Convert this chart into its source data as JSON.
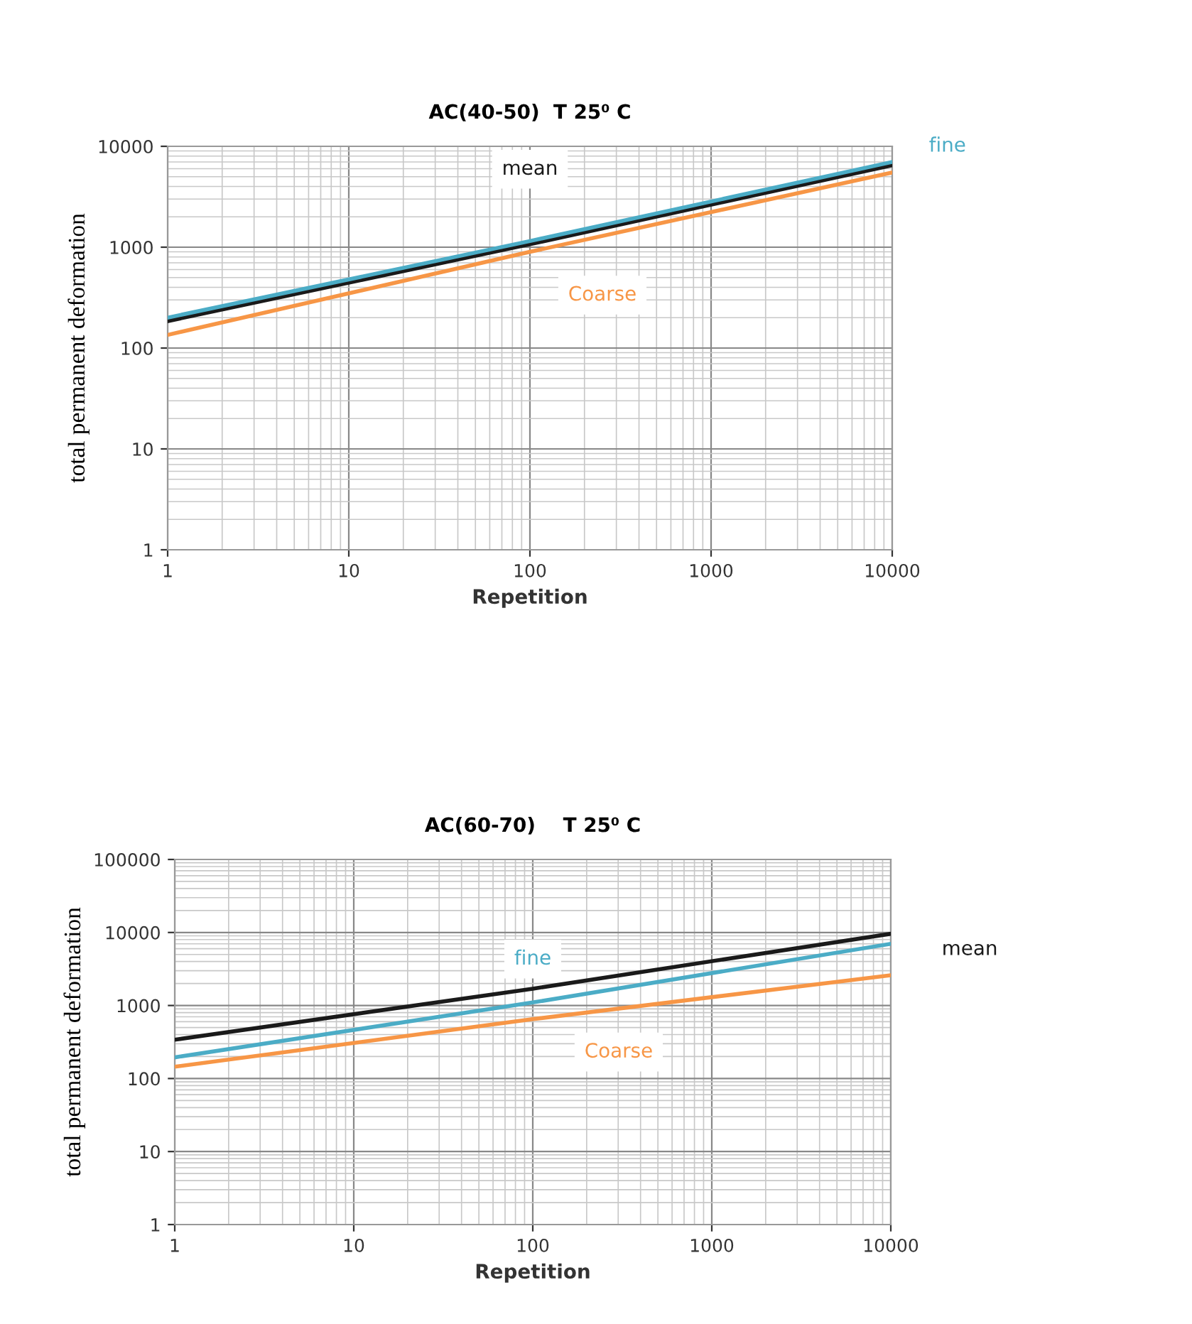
{
  "chart_data": [
    {
      "type": "line",
      "title": "AC(40-50)  T 25⁰ C",
      "xlabel": "Repetition",
      "ylabel": "total permanent deformation",
      "log": "xy",
      "grid": true,
      "xlim": [
        1,
        10000
      ],
      "xticks": [
        1,
        10,
        100,
        1000,
        10000
      ],
      "ylim": [
        1,
        10000
      ],
      "yticks": [
        1,
        10,
        100,
        1000,
        10000
      ],
      "x": [
        1,
        100,
        10000
      ],
      "series": [
        {
          "name": "fine",
          "color": "#4bacc6",
          "values": [
            200,
            1150,
            7000
          ]
        },
        {
          "name": "mean",
          "color": "#1a1a1a",
          "values": [
            185,
            1070,
            6500
          ]
        },
        {
          "name": "Coarse",
          "color": "#f79646",
          "values": [
            135,
            900,
            5500
          ]
        }
      ]
    },
    {
      "type": "line",
      "title": "AC(60-70)    T 25⁰ C",
      "xlabel": "Repetition",
      "ylabel": "total permanent deformation",
      "log": "xy",
      "grid": true,
      "xlim": [
        1,
        10000
      ],
      "xticks": [
        1,
        10,
        100,
        1000,
        10000
      ],
      "ylim": [
        1,
        100000
      ],
      "yticks": [
        1,
        10,
        100,
        1000,
        10000,
        100000
      ],
      "x": [
        1,
        100,
        10000
      ],
      "series": [
        {
          "name": "fine",
          "color": "#4bacc6",
          "values": [
            195,
            1100,
            7000
          ]
        },
        {
          "name": "mean",
          "color": "#1a1a1a",
          "values": [
            340,
            1700,
            9600
          ]
        },
        {
          "name": "Coarse",
          "color": "#f79646",
          "values": [
            145,
            650,
            2600
          ]
        }
      ]
    }
  ]
}
